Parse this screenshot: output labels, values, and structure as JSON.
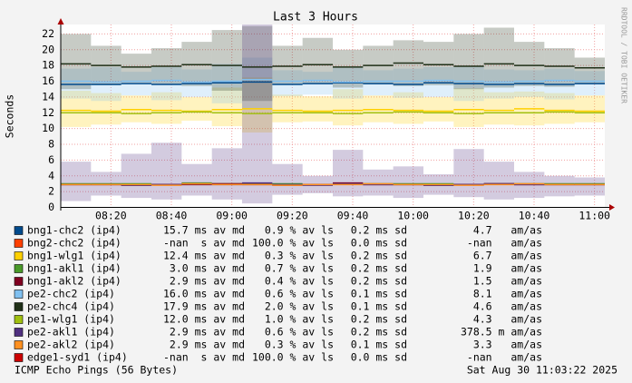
{
  "chart_data": {
    "type": "smoke",
    "title": "Last 3 Hours",
    "y_label": "Seconds",
    "watermark": "RRDTOOL / TOBI OETIKER",
    "footer_left": "ICMP Echo Pings (56 Bytes)",
    "footer_right": "Sat Aug 30 11:03:22 2025",
    "x": [
      488.4,
      498.4,
      508.4,
      518.4,
      528.4,
      538.4,
      548.4,
      558.4,
      568.4,
      578.4,
      588.4,
      598.4,
      608.4,
      618.4,
      628.4,
      638.4,
      648.4,
      658.4
    ],
    "xlim": [
      483.4,
      663.4
    ],
    "xticks": [
      {
        "value": 500,
        "label": "08:20"
      },
      {
        "value": 520,
        "label": "08:40"
      },
      {
        "value": 540,
        "label": "09:00"
      },
      {
        "value": 560,
        "label": "09:20"
      },
      {
        "value": 580,
        "label": "09:40"
      },
      {
        "value": 600,
        "label": "10:00"
      },
      {
        "value": 620,
        "label": "10:20"
      },
      {
        "value": 640,
        "label": "10:40"
      },
      {
        "value": 660,
        "label": "11:00"
      }
    ],
    "ylim": [
      0,
      23.2
    ],
    "yticks": [
      0,
      2,
      4,
      6,
      8,
      10,
      12,
      14,
      16,
      18,
      20,
      22
    ],
    "grid": true,
    "series": [
      {
        "name": "bng1-chc2 (ip4)",
        "color": "#004a8c",
        "values": [
          15.6,
          15.6,
          15.7,
          15.6,
          15.7,
          15.8,
          15.9,
          15.6,
          15.7,
          15.8,
          15.7,
          15.6,
          15.8,
          15.7,
          15.6,
          15.7,
          15.6,
          15.7
        ],
        "stats": [
          "15.7 ms av md",
          "0.9 % av ls",
          "0.2 ms sd",
          "4.7   am/as"
        ]
      },
      {
        "name": "bng2-chc2 (ip4)",
        "color": "#ff4000",
        "values": [
          null,
          null,
          null,
          null,
          null,
          null,
          null,
          null,
          null,
          null,
          null,
          null,
          null,
          null,
          null,
          null,
          null,
          null
        ],
        "stats": [
          "-nan  s av md",
          "100.0 % av ls",
          "0.0 ms sd",
          "-nan   am/as"
        ]
      },
      {
        "name": "bng1-wlg1 (ip4)",
        "color": "#ffd000",
        "values": [
          12.3,
          12.2,
          12.4,
          12.3,
          12.2,
          12.4,
          12.5,
          12.3,
          12.2,
          12.3,
          12.4,
          12.3,
          12.2,
          12.4,
          12.3,
          12.5,
          12.3,
          12.2
        ],
        "smoke_min": [
          10.2,
          10.5,
          10.8,
          10.6,
          11.0,
          10.3,
          9.5,
          10.8,
          10.9,
          10.4,
          10.8,
          10.6,
          10.9,
          10.2,
          10.5,
          10.4,
          10.6,
          10.8
        ],
        "smoke_max": [
          14.8,
          14.5,
          14.2,
          14.6,
          14.0,
          15.2,
          16.5,
          14.3,
          14.1,
          15.0,
          14.2,
          14.6,
          14.0,
          15.1,
          14.6,
          14.7,
          14.5,
          14.2
        ],
        "stats": [
          "12.4 ms av md",
          "0.3 % av ls",
          "0.2 ms sd",
          "6.7   am/as"
        ]
      },
      {
        "name": "bng1-akl1 (ip4)",
        "color": "#4a9a2a",
        "values": [
          3.0,
          3.0,
          3.0,
          2.9,
          3.1,
          3.0,
          3.0,
          3.0,
          2.9,
          3.0,
          3.0,
          3.0,
          3.0,
          2.9,
          3.0,
          3.0,
          3.0,
          3.0
        ],
        "stats": [
          "3.0 ms av md",
          "0.7 % av ls",
          "0.2 ms sd",
          "1.9   am/as"
        ]
      },
      {
        "name": "bng1-akl2 (ip4)",
        "color": "#800020",
        "values": [
          2.9,
          2.9,
          2.8,
          2.9,
          2.9,
          3.0,
          2.9,
          2.8,
          2.9,
          3.1,
          2.9,
          2.9,
          2.8,
          2.9,
          3.0,
          2.9,
          2.9,
          2.9
        ],
        "stats": [
          "2.9 ms av md",
          "0.4 % av ls",
          "0.2 ms sd",
          "1.5   am/as"
        ]
      },
      {
        "name": "pe2-chc2 (ip4)",
        "color": "#80c0f0",
        "values": [
          16.0,
          15.9,
          16.0,
          16.1,
          15.9,
          16.0,
          16.2,
          16.0,
          16.1,
          15.9,
          16.0,
          16.0,
          16.1,
          16.0,
          15.9,
          16.0,
          16.1,
          16.0
        ],
        "smoke_min": [
          13.8,
          13.5,
          14.2,
          13.6,
          14.0,
          13.2,
          12.5,
          14.1,
          14.3,
          13.8,
          14.2,
          13.9,
          14.0,
          13.5,
          13.8,
          14.0,
          13.7,
          14.2
        ],
        "smoke_max": [
          17.6,
          17.8,
          17.2,
          17.8,
          17.5,
          18.2,
          19.0,
          17.4,
          17.2,
          17.8,
          17.4,
          17.6,
          17.8,
          18.0,
          17.5,
          17.4,
          17.6,
          17.3
        ],
        "stats": [
          "16.0 ms av md",
          "0.6 % av ls",
          "0.1 ms sd",
          "8.1   am/as"
        ]
      },
      {
        "name": "pe2-chc4 (ip4)",
        "color": "#203018",
        "values": [
          18.2,
          18.0,
          17.8,
          17.9,
          18.1,
          18.0,
          17.8,
          17.9,
          18.1,
          17.8,
          18.0,
          18.3,
          18.1,
          17.9,
          18.2,
          18.0,
          17.9,
          17.7
        ],
        "smoke_min": [
          15.0,
          15.5,
          15.8,
          15.6,
          15.4,
          14.8,
          13.5,
          15.6,
          15.7,
          15.2,
          15.6,
          15.4,
          15.5,
          15.0,
          15.2,
          15.4,
          15.3,
          15.6
        ],
        "smoke_max": [
          22.0,
          20.5,
          19.5,
          20.2,
          21.0,
          22.5,
          23.0,
          20.5,
          21.5,
          20.0,
          20.5,
          21.2,
          21.0,
          22.0,
          22.8,
          21.0,
          20.2,
          19.0
        ],
        "stats": [
          "17.9 ms av md",
          "2.0 % av ls",
          "0.1 ms sd",
          "4.6   am/as"
        ]
      },
      {
        "name": "pe1-wlg1 (ip4)",
        "color": "#a0c010",
        "values": [
          12.0,
          12.0,
          11.9,
          12.0,
          12.1,
          12.0,
          11.9,
          12.0,
          12.0,
          11.9,
          12.0,
          12.1,
          12.0,
          11.9,
          12.0,
          12.0,
          12.1,
          12.0
        ],
        "stats": [
          "12.0 ms av md",
          "1.0 % av ls",
          "0.2 ms sd",
          "4.3   am/as"
        ]
      },
      {
        "name": "pe2-akl1 (ip4)",
        "color": "#503080",
        "values": [
          2.9,
          2.9,
          2.8,
          2.9,
          3.0,
          2.9,
          3.1,
          2.9,
          2.8,
          3.0,
          2.9,
          2.9,
          2.8,
          2.9,
          3.0,
          2.9,
          2.9,
          2.9
        ],
        "smoke_min": [
          0.8,
          1.5,
          1.2,
          1.0,
          1.5,
          1.0,
          0.5,
          1.6,
          1.8,
          1.4,
          1.5,
          1.2,
          1.6,
          1.3,
          1.0,
          1.2,
          1.4,
          1.5
        ],
        "smoke_max": [
          5.8,
          4.5,
          6.8,
          8.2,
          5.5,
          7.5,
          23.2,
          5.5,
          4.0,
          7.3,
          4.8,
          5.2,
          4.2,
          7.4,
          5.8,
          4.5,
          4.0,
          3.8
        ],
        "stats": [
          "2.9 ms av md",
          "0.6 % av ls",
          "0.2 ms sd",
          "378.5 m am/as"
        ]
      },
      {
        "name": "pe2-akl2 (ip4)",
        "color": "#ff9020",
        "values": [
          2.9,
          2.9,
          2.9,
          2.8,
          3.0,
          2.9,
          2.9,
          2.8,
          2.9,
          2.9,
          3.0,
          2.9,
          2.9,
          2.8,
          2.9,
          3.0,
          2.9,
          2.9
        ],
        "stats": [
          "2.9 ms av md",
          "0.3 % av ls",
          "0.1 ms sd",
          "3.3   am/as"
        ]
      },
      {
        "name": "edge1-syd1 (ip4)",
        "color": "#cc0000",
        "values": [
          null,
          null,
          null,
          null,
          null,
          null,
          null,
          null,
          null,
          null,
          null,
          null,
          null,
          null,
          null,
          null,
          null,
          null
        ],
        "stats": [
          "-nan  s av md",
          "100.0 % av ls",
          "0.0 ms sd",
          "-nan   am/as"
        ]
      }
    ]
  }
}
